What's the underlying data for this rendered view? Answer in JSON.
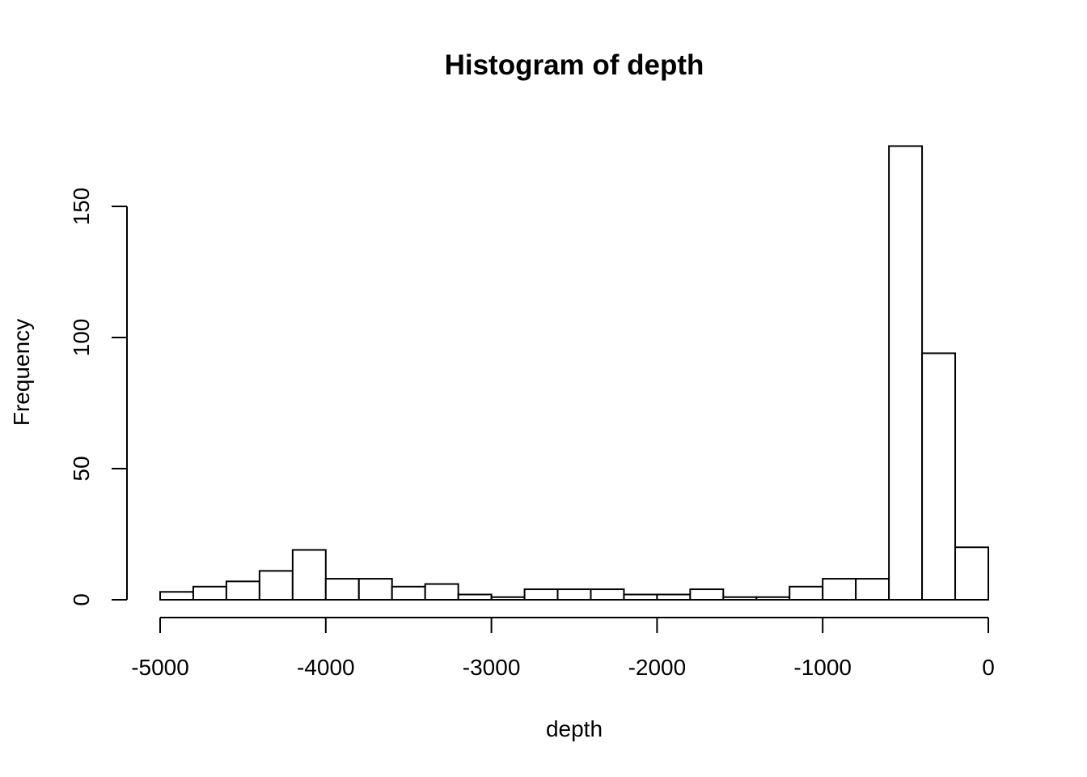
{
  "chart_data": {
    "type": "bar",
    "title": "Histogram of depth",
    "xlabel": "depth",
    "ylabel": "Frequency",
    "bin_width": 200,
    "bin_starts": [
      -5000,
      -4800,
      -4600,
      -4400,
      -4200,
      -4000,
      -3800,
      -3600,
      -3400,
      -3200,
      -3000,
      -2800,
      -2600,
      -2400,
      -2200,
      -2000,
      -1800,
      -1600,
      -1400,
      -1200,
      -1000,
      -800,
      -600,
      -400,
      -200
    ],
    "values": [
      3,
      5,
      7,
      11,
      19,
      8,
      8,
      5,
      6,
      2,
      1,
      4,
      4,
      4,
      2,
      2,
      4,
      1,
      1,
      5,
      8,
      8,
      173,
      94,
      20
    ],
    "xlim": [
      -5000,
      0
    ],
    "ylim": [
      0,
      150
    ],
    "xticks": [
      -5000,
      -4000,
      -3000,
      -2000,
      -1000,
      0
    ],
    "xtick_labels": [
      "-5000",
      "-4000",
      "-3000",
      "-2000",
      "-1000",
      "0"
    ],
    "yticks": [
      0,
      50,
      100,
      150
    ],
    "ytick_labels": [
      "0",
      "50",
      "100",
      "150"
    ],
    "grid": false,
    "bar_fill": "#ffffff",
    "bar_stroke": "#000000"
  }
}
